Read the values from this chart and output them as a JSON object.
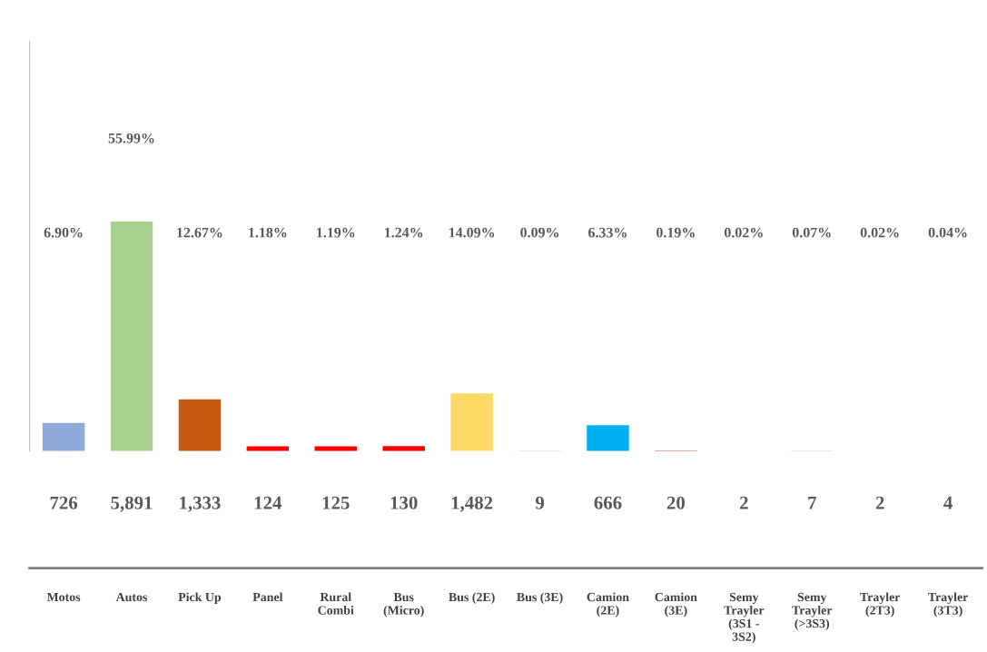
{
  "chart_data": {
    "type": "bar",
    "categories": [
      "Motos",
      "Autos",
      "Pick Up",
      "Panel",
      "Rural\nCombi",
      "Bus\n(Micro)",
      "Bus (2E)",
      "Bus (3E)",
      "Camion\n(2E)",
      "Camion\n(3E)",
      "Semy\nTrayler\n(3S1 -\n3S2)",
      "Semy\nTrayler\n(>3S3)",
      "Trayler\n(2T3)",
      "Trayler\n(3T3)"
    ],
    "values": [
      726,
      5891,
      1333,
      124,
      125,
      130,
      1482,
      9,
      666,
      20,
      2,
      7,
      2,
      4
    ],
    "value_labels": [
      "726",
      "5,891",
      "1,333",
      "124",
      "125",
      "130",
      "1,482",
      "9",
      "666",
      "20",
      "2",
      "7",
      "2",
      "4"
    ],
    "colors": [
      "#8eaadb",
      "#a9d18e",
      "#c55a11",
      "#ff0000",
      "#ff0000",
      "#ff0000",
      "#ffd966",
      "#d46a6a",
      "#00b0f0",
      "#d46a6a",
      "#d46a6a",
      "#d46a6a",
      "#d46a6a",
      "#d46a6a"
    ],
    "ylim": [
      0,
      10521
    ],
    "tick_labels": "x",
    "grid": false,
    "legend": false,
    "annotations": [
      "6.90%",
      "55.99%",
      "12.67%",
      "1.18%",
      "1.19%",
      "1.24%",
      "14.09%",
      "0.09%",
      "6.33%",
      "0.19%",
      "0.02%",
      "0.07%",
      "0.02%",
      "0.04%"
    ]
  }
}
